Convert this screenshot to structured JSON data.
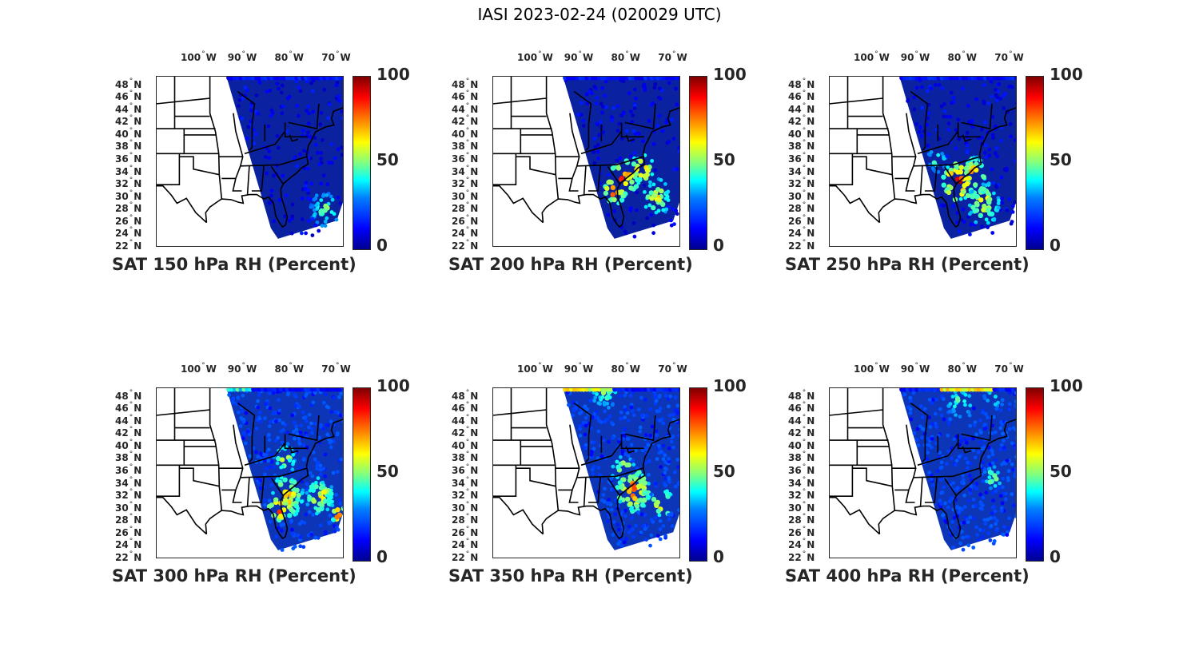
{
  "title": "IASI 2023-02-24 (020029 UTC)",
  "lon_ticks": [
    "100",
    "90",
    "80",
    "70"
  ],
  "lon_hemi": "W",
  "lat_ticks": [
    "48",
    "46",
    "44",
    "42",
    "40",
    "38",
    "36",
    "34",
    "32",
    "30",
    "28",
    "26",
    "24",
    "22"
  ],
  "lat_hemi": "N",
  "colorbar": {
    "min": "0",
    "mid": "50",
    "max": "100",
    "colormap": "jet"
  },
  "map_extent": {
    "lon_min": -108,
    "lon_max": -68,
    "lat_min": 22,
    "lat_max": 49.5
  },
  "panels": [
    {
      "label": "SAT 150 hPa RH (Percent)",
      "level_hpa": 150
    },
    {
      "label": "SAT 200 hPa RH (Percent)",
      "level_hpa": 200
    },
    {
      "label": "SAT 250 hPa RH (Percent)",
      "level_hpa": 250
    },
    {
      "label": "SAT 300 hPa RH (Percent)",
      "level_hpa": 300
    },
    {
      "label": "SAT 350 hPa RH (Percent)",
      "level_hpa": 350
    },
    {
      "label": "SAT 400 hPa RH (Percent)",
      "level_hpa": 400
    }
  ],
  "colors": {
    "text": "#262626",
    "border": "#000000",
    "swath_dry": "#0a2fa8"
  }
}
